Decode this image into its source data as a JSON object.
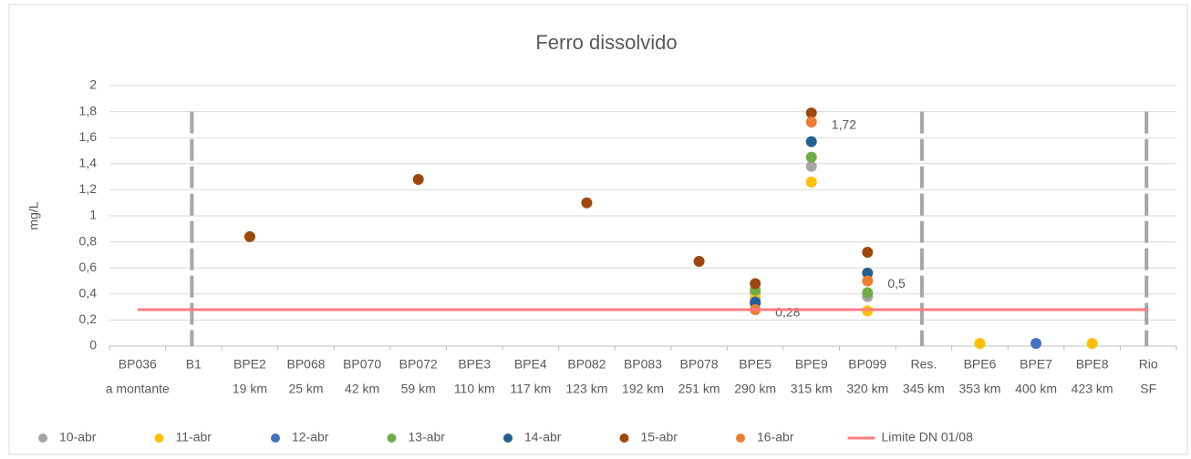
{
  "chart_data": {
    "type": "scatter",
    "title": "Ferro dissolvido",
    "y_label": "mg/L",
    "categories": [
      [
        "BP036",
        "a montante"
      ],
      [
        "B1"
      ],
      [
        "BPE2",
        "19 km"
      ],
      [
        "BP068",
        "25 km"
      ],
      [
        "BP070",
        "42 km"
      ],
      [
        "BP072",
        "59 km"
      ],
      [
        "BPE3",
        "110 km"
      ],
      [
        "BPE4",
        "117 km"
      ],
      [
        "BP082",
        "123 km"
      ],
      [
        "BP083",
        "192 km"
      ],
      [
        "BP078",
        "251 km"
      ],
      [
        "BPE5",
        "290 km"
      ],
      [
        "BPE9",
        "315 km"
      ],
      [
        "BP099",
        "320 km"
      ],
      [
        "Res.",
        "345 km"
      ],
      [
        "BPE6",
        "353 km"
      ],
      [
        "BPE7",
        "400 km"
      ],
      [
        "BPE8",
        "423 km"
      ],
      [
        "Rio",
        "SF"
      ]
    ],
    "ylim": [
      0,
      2
    ],
    "yticks": [
      0,
      {
        "value": 0.2,
        "label": "0,2"
      },
      {
        "value": 0.4,
        "label": "0,4"
      },
      {
        "value": 0.6,
        "label": "0,6"
      },
      {
        "value": 0.8,
        "label": "0,8"
      },
      1,
      {
        "value": 1.2,
        "label": "1,2"
      },
      {
        "value": 1.4,
        "label": "1,4"
      },
      {
        "value": 1.6,
        "label": "1,6"
      },
      {
        "value": 1.8,
        "label": "1,8"
      },
      2
    ],
    "grid": true,
    "legend": "bottom",
    "series": [
      {
        "name": "10-abr",
        "color": "#a5a5a5",
        "values": [
          null,
          null,
          null,
          null,
          null,
          null,
          null,
          null,
          null,
          null,
          null,
          0.41,
          1.38,
          0.38,
          null,
          null,
          null,
          null,
          null
        ]
      },
      {
        "name": "11-abr",
        "color": "#ffc000",
        "values": [
          null,
          null,
          null,
          null,
          null,
          null,
          null,
          null,
          null,
          null,
          null,
          0.37,
          1.26,
          0.27,
          null,
          0.02,
          null,
          0.02,
          null
        ]
      },
      {
        "name": "12-abr",
        "color": "#4472c4",
        "values": [
          null,
          null,
          null,
          null,
          null,
          null,
          null,
          null,
          null,
          null,
          null,
          0.34,
          null,
          null,
          null,
          null,
          0.02,
          null,
          null
        ]
      },
      {
        "name": "13-abr",
        "color": "#70ad47",
        "values": [
          null,
          null,
          null,
          null,
          null,
          null,
          null,
          null,
          null,
          null,
          null,
          0.43,
          1.45,
          0.41,
          null,
          null,
          null,
          null,
          null
        ]
      },
      {
        "name": "14-abr",
        "color": "#255e91",
        "values": [
          null,
          null,
          null,
          null,
          null,
          null,
          null,
          null,
          null,
          null,
          null,
          0.33,
          1.57,
          0.56,
          null,
          null,
          null,
          null,
          null
        ]
      },
      {
        "name": "15-abr",
        "color": "#9e480e",
        "values": [
          null,
          null,
          0.84,
          null,
          null,
          1.28,
          null,
          null,
          1.1,
          null,
          0.65,
          0.48,
          1.79,
          0.72,
          null,
          null,
          null,
          null,
          null
        ]
      },
      {
        "name": "16-abr",
        "color": "#ed7d31",
        "values": [
          null,
          null,
          null,
          null,
          null,
          null,
          null,
          null,
          null,
          null,
          null,
          0.28,
          1.72,
          0.5,
          null,
          null,
          null,
          null,
          null
        ],
        "value_labels": [
          null,
          null,
          null,
          null,
          null,
          null,
          null,
          null,
          null,
          null,
          null,
          "0,28",
          "1,72",
          "0,5",
          null,
          null,
          null,
          null,
          null
        ]
      },
      {
        "name": "Limite DN 01/08",
        "color": "#ff7c80",
        "line": true,
        "values": [
          0.28,
          0.28,
          0.28,
          0.28,
          0.28,
          0.28,
          0.28,
          0.28,
          0.28,
          0.28,
          0.28,
          0.28,
          0.28,
          0.28,
          0.28,
          0.28,
          0.28,
          0.28,
          0.28
        ]
      }
    ]
  }
}
